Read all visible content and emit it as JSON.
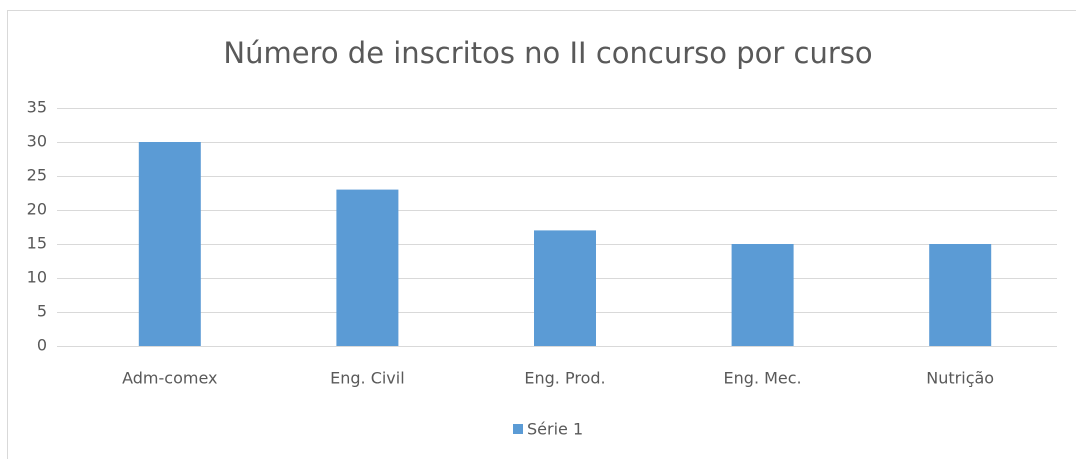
{
  "chart_data": {
    "type": "bar",
    "title": "Número de inscritos no II concurso por curso",
    "categories": [
      "Adm-comex",
      "Eng. Civil",
      "Eng. Prod.",
      "Eng. Mec.",
      "Nutrição"
    ],
    "series": [
      {
        "name": "Série 1",
        "color": "#5b9bd5",
        "values": [
          30,
          23,
          17,
          15,
          15
        ]
      }
    ],
    "ylim": [
      0,
      35
    ],
    "yticks": [
      0,
      5,
      10,
      15,
      20,
      25,
      30,
      35
    ],
    "grid": true,
    "legend": "bottom"
  }
}
